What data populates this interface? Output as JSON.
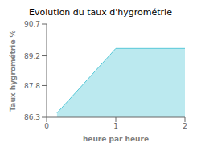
{
  "chart_data": {
    "type": "area",
    "title": "Evolution du taux d'hygrométrie",
    "xlabel": "heure par heure",
    "ylabel": "Taux hygrométrie %",
    "x": [
      0.15,
      1.0,
      2.0
    ],
    "values": [
      86.5,
      89.55,
      89.55
    ],
    "color": "#56c8d8",
    "xlim": [
      0,
      2
    ],
    "ylim": [
      86.3,
      90.7
    ],
    "xticks": [
      0,
      1,
      2
    ],
    "yticks": [
      86.3,
      87.8,
      89.2,
      90.7
    ]
  }
}
